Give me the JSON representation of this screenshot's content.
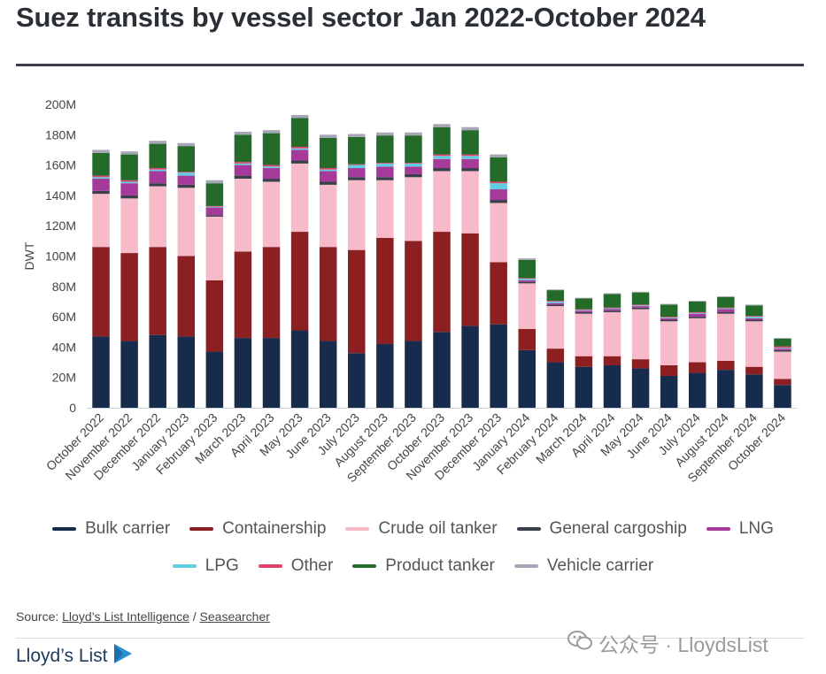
{
  "title": "Suez transits by vessel sector Jan 2022-October 2024",
  "source": {
    "prefix": "Source: ",
    "link1": "Lloyd’s List Intelligence",
    "separator": " / ",
    "link2": "Seasearcher"
  },
  "brand": {
    "name": "Lloyd’s List",
    "icon": "play-triangle-icon"
  },
  "watermark": {
    "text": "公众号 · LloydsList",
    "icon": "wechat-icon"
  },
  "colors": {
    "Bulk carrier": "#172b4d",
    "Containership": "#8b1f22",
    "Crude oil tanker": "#f7bac8",
    "General cargoship": "#3a3f4b",
    "LNG": "#a63a9a",
    "LPG": "#62cde0",
    "Other": "#e0446d",
    "Product tanker": "#246b2a",
    "Vehicle carrier": "#a7a6b6"
  },
  "chart_data": {
    "type": "bar",
    "stacked": true,
    "title": "Suez transits by vessel sector Jan 2022-October 2024",
    "ylabel": "DWT",
    "xlabel": "",
    "ylim": [
      0,
      200000000
    ],
    "yticks": [
      "0",
      "20M",
      "40M",
      "60M",
      "80M",
      "100M",
      "120M",
      "140M",
      "160M",
      "180M",
      "200M"
    ],
    "grid": false,
    "legend_position": "bottom",
    "categories": [
      "October 2022",
      "November 2022",
      "December 2022",
      "January 2023",
      "February 2023",
      "March 2023",
      "April 2023",
      "May 2023",
      "June 2023",
      "July 2023",
      "August 2023",
      "September 2023",
      "October 2023",
      "November 2023",
      "December 2023",
      "January 2024",
      "February 2024",
      "March 2024",
      "April 2024",
      "May 2024",
      "June 2024",
      "July 2024",
      "August 2024",
      "September 2024",
      "October 2024"
    ],
    "series": [
      {
        "name": "Bulk carrier",
        "values": [
          47,
          44,
          48,
          47,
          37,
          46,
          46,
          51,
          44,
          36,
          42,
          44,
          50,
          54,
          55,
          38,
          30,
          27,
          28,
          26,
          21,
          23,
          25,
          22,
          15
        ]
      },
      {
        "name": "Containership",
        "values": [
          59,
          58,
          58,
          53,
          47,
          57,
          60,
          65,
          62,
          68,
          70,
          66,
          66,
          61,
          41,
          14,
          9,
          7,
          6,
          6,
          7,
          7,
          6,
          5,
          4
        ]
      },
      {
        "name": "Crude oil tanker",
        "values": [
          35,
          36,
          40,
          45,
          42,
          48,
          43,
          45,
          41,
          46,
          38,
          42,
          40,
          41,
          39,
          30,
          28,
          28,
          29,
          33,
          29,
          29,
          31,
          30,
          18
        ]
      },
      {
        "name": "General cargoship",
        "values": [
          2,
          2,
          2,
          2,
          1,
          2,
          2,
          2,
          2,
          2,
          2,
          2,
          2,
          2,
          2,
          1,
          1,
          1,
          1,
          1,
          1,
          1,
          1,
          1,
          1
        ]
      },
      {
        "name": "LNG",
        "values": [
          8,
          8,
          8,
          6,
          5,
          7,
          7,
          7,
          7,
          6,
          7,
          5,
          6,
          6,
          7,
          1,
          1,
          1,
          1,
          1,
          1,
          2,
          2,
          1,
          1
        ]
      },
      {
        "name": "LPG",
        "values": [
          1,
          1,
          1,
          2,
          0.5,
          1,
          1,
          1,
          1,
          2,
          2,
          2,
          2,
          2,
          4,
          1,
          1,
          0.5,
          0.5,
          0.5,
          0.5,
          0.5,
          0.5,
          1,
          0.5
        ]
      },
      {
        "name": "Other",
        "values": [
          1,
          1,
          1,
          0.5,
          0.5,
          1,
          1,
          1,
          1,
          0.5,
          0.5,
          0.5,
          1,
          1,
          1,
          0.5,
          0.5,
          0.5,
          0.5,
          0.5,
          0.5,
          0.5,
          0.5,
          0.5,
          1
        ]
      },
      {
        "name": "Product tanker",
        "values": [
          15,
          17,
          16,
          17,
          15,
          18,
          21,
          19,
          20,
          18,
          18,
          18,
          18,
          16,
          16,
          12,
          7,
          7,
          9,
          8,
          8,
          7,
          7,
          7,
          5
        ]
      },
      {
        "name": "Vehicle carrier",
        "values": [
          2,
          2,
          2,
          2,
          2,
          2,
          2,
          2,
          2,
          2,
          2,
          2,
          2,
          2,
          2,
          1,
          0.5,
          0.5,
          0.5,
          0.5,
          0.5,
          0.5,
          0.5,
          0.5,
          0.5
        ]
      }
    ],
    "value_unit": "M DWT"
  }
}
